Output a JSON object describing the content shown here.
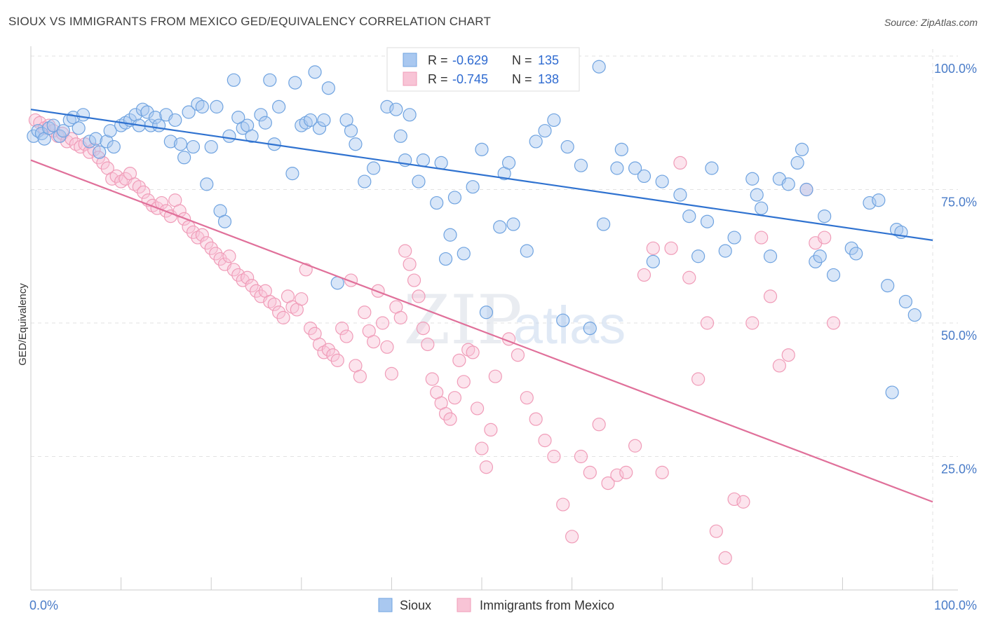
{
  "title": "SIOUX VS IMMIGRANTS FROM MEXICO GED/EQUIVALENCY CORRELATION CHART",
  "source": "Source: ZipAtlas.com",
  "watermark": {
    "zip": "ZIP",
    "atlas": "atlas"
  },
  "colors": {
    "sioux": "#6fa3e0",
    "sioux_fill": "#a9c8f0",
    "sioux_line": "#2f72d0",
    "mexico": "#f09cb8",
    "mexico_fill": "#f8c4d6",
    "mexico_line": "#e0709a",
    "axis_text": "#4a7cc8",
    "grid": "#e2e2e2"
  },
  "legend": {
    "rows": [
      {
        "r_label": "R =",
        "r_value": "-0.629",
        "n_label": "N =",
        "n_value": "135"
      },
      {
        "r_label": "R =",
        "r_value": "-0.745",
        "n_label": "N =",
        "n_value": "138"
      }
    ]
  },
  "chart_data": {
    "type": "scatter",
    "title": "SIOUX VS IMMIGRANTS FROM MEXICO GED/EQUIVALENCY CORRELATION CHART",
    "xlabel": "",
    "ylabel": "GED/Equivalency",
    "xlim": [
      0,
      100
    ],
    "ylim": [
      0,
      100
    ],
    "x_tick_labels": [
      "0.0%",
      "100.0%"
    ],
    "y_ticks": [
      25,
      50,
      75,
      100
    ],
    "y_tick_labels": [
      "25.0%",
      "50.0%",
      "75.0%",
      "100.0%"
    ],
    "grid": true,
    "legend_position": "top-center",
    "series": [
      {
        "name": "Sioux",
        "color": "#6fa3e0",
        "trend": {
          "x": [
            0,
            100
          ],
          "y": [
            90,
            65.5
          ]
        },
        "points": [
          [
            0.3,
            85
          ],
          [
            0.8,
            86
          ],
          [
            1.2,
            85.5
          ],
          [
            1.5,
            84.5
          ],
          [
            2.0,
            86.5
          ],
          [
            2.5,
            87
          ],
          [
            3.2,
            85
          ],
          [
            3.6,
            86
          ],
          [
            4.3,
            88
          ],
          [
            4.7,
            88.5
          ],
          [
            5.3,
            86.5
          ],
          [
            5.8,
            89
          ],
          [
            6.5,
            84
          ],
          [
            7.2,
            84.5
          ],
          [
            7.6,
            82
          ],
          [
            8.4,
            84
          ],
          [
            8.8,
            86
          ],
          [
            9.2,
            83
          ],
          [
            10,
            87
          ],
          [
            10.5,
            87.5
          ],
          [
            11,
            88
          ],
          [
            11.6,
            89
          ],
          [
            12,
            87
          ],
          [
            12.4,
            90
          ],
          [
            12.9,
            89.5
          ],
          [
            13.3,
            87
          ],
          [
            13.8,
            88.5
          ],
          [
            14.2,
            87
          ],
          [
            15,
            89
          ],
          [
            15.5,
            84
          ],
          [
            16,
            88
          ],
          [
            16.6,
            83.5
          ],
          [
            17,
            81
          ],
          [
            17.5,
            89.5
          ],
          [
            18,
            83
          ],
          [
            18.5,
            91
          ],
          [
            19,
            90.5
          ],
          [
            19.5,
            76
          ],
          [
            20,
            83
          ],
          [
            20.6,
            90.5
          ],
          [
            21,
            71
          ],
          [
            21.5,
            69
          ],
          [
            22,
            85
          ],
          [
            22.5,
            95.5
          ],
          [
            23,
            88.5
          ],
          [
            23.5,
            86.5
          ],
          [
            24,
            87
          ],
          [
            24.5,
            85
          ],
          [
            25.5,
            89
          ],
          [
            26,
            87.5
          ],
          [
            26.5,
            95.5
          ],
          [
            27,
            83.5
          ],
          [
            27.5,
            90.5
          ],
          [
            29,
            78
          ],
          [
            29.3,
            95
          ],
          [
            30,
            87
          ],
          [
            30.5,
            87.5
          ],
          [
            31,
            88
          ],
          [
            31.5,
            97
          ],
          [
            32,
            86.5
          ],
          [
            32.5,
            88
          ],
          [
            33,
            94
          ],
          [
            34,
            57.5
          ],
          [
            35,
            88
          ],
          [
            35.5,
            86
          ],
          [
            36,
            83.5
          ],
          [
            37,
            76.5
          ],
          [
            38,
            79
          ],
          [
            39.5,
            90.5
          ],
          [
            40.5,
            90
          ],
          [
            41,
            85
          ],
          [
            41.5,
            80.5
          ],
          [
            42,
            89
          ],
          [
            43,
            76.5
          ],
          [
            43.5,
            80.5
          ],
          [
            45,
            72.5
          ],
          [
            45.5,
            80
          ],
          [
            46,
            62
          ],
          [
            46.5,
            66.5
          ],
          [
            47,
            73.5
          ],
          [
            48,
            63
          ],
          [
            49,
            75.5
          ],
          [
            50,
            82.5
          ],
          [
            50.5,
            52
          ],
          [
            52,
            68
          ],
          [
            52.5,
            78
          ],
          [
            53,
            80
          ],
          [
            53.5,
            68.5
          ],
          [
            55,
            63.5
          ],
          [
            56,
            84
          ],
          [
            57,
            86
          ],
          [
            58,
            88
          ],
          [
            59,
            50.5
          ],
          [
            59.5,
            83
          ],
          [
            61,
            79.5
          ],
          [
            62,
            49
          ],
          [
            63,
            98
          ],
          [
            63.5,
            68.5
          ],
          [
            65,
            79
          ],
          [
            65.5,
            82.5
          ],
          [
            67,
            79
          ],
          [
            68,
            77.5
          ],
          [
            69,
            61.5
          ],
          [
            70,
            76.5
          ],
          [
            72,
            74
          ],
          [
            73,
            70
          ],
          [
            74,
            62.5
          ],
          [
            75,
            69
          ],
          [
            75.5,
            79
          ],
          [
            77,
            63.5
          ],
          [
            78,
            66
          ],
          [
            80,
            77
          ],
          [
            80.5,
            74
          ],
          [
            81,
            71.5
          ],
          [
            82,
            62.5
          ],
          [
            83,
            77
          ],
          [
            84,
            76
          ],
          [
            85,
            80
          ],
          [
            85.5,
            82.5
          ],
          [
            86,
            75
          ],
          [
            87,
            61.5
          ],
          [
            87.5,
            62.5
          ],
          [
            88,
            70
          ],
          [
            89,
            59
          ],
          [
            91,
            64
          ],
          [
            91.5,
            63
          ],
          [
            93,
            72.5
          ],
          [
            94,
            73
          ],
          [
            95,
            57
          ],
          [
            95.5,
            37
          ],
          [
            96,
            67.5
          ],
          [
            96.5,
            67
          ],
          [
            97,
            54
          ],
          [
            98,
            51.5
          ]
        ]
      },
      {
        "name": "Immigrants from Mexico",
        "color": "#f09cb8",
        "trend": {
          "x": [
            0,
            100
          ],
          "y": [
            80.5,
            16.5
          ]
        },
        "points": [
          [
            0.5,
            88
          ],
          [
            1,
            87.5
          ],
          [
            1.5,
            86.5
          ],
          [
            2,
            87
          ],
          [
            2.5,
            86
          ],
          [
            3,
            85
          ],
          [
            3.5,
            85.5
          ],
          [
            4,
            84
          ],
          [
            4.5,
            84.5
          ],
          [
            5,
            83.5
          ],
          [
            5.5,
            83
          ],
          [
            6,
            83.5
          ],
          [
            6.5,
            82
          ],
          [
            7,
            82.5
          ],
          [
            7.5,
            81
          ],
          [
            8,
            80
          ],
          [
            8.5,
            79
          ],
          [
            9,
            77
          ],
          [
            9.5,
            77.5
          ],
          [
            10,
            76.5
          ],
          [
            10.5,
            77
          ],
          [
            11,
            78
          ],
          [
            11.5,
            76
          ],
          [
            12,
            75.5
          ],
          [
            12.5,
            74.5
          ],
          [
            13,
            73
          ],
          [
            13.5,
            72
          ],
          [
            14,
            71.5
          ],
          [
            14.5,
            72.5
          ],
          [
            15,
            71
          ],
          [
            15.5,
            70
          ],
          [
            16,
            73
          ],
          [
            16.5,
            71
          ],
          [
            17,
            69.5
          ],
          [
            17.5,
            68
          ],
          [
            18,
            67
          ],
          [
            18.5,
            66
          ],
          [
            19,
            66.5
          ],
          [
            19.5,
            65
          ],
          [
            20,
            64
          ],
          [
            20.5,
            63
          ],
          [
            21,
            62
          ],
          [
            21.5,
            61
          ],
          [
            22,
            62.5
          ],
          [
            22.5,
            60
          ],
          [
            23,
            59
          ],
          [
            23.5,
            58
          ],
          [
            24,
            58.5
          ],
          [
            24.5,
            57
          ],
          [
            25,
            56
          ],
          [
            25.5,
            55
          ],
          [
            26,
            56
          ],
          [
            26.5,
            54
          ],
          [
            27,
            53.5
          ],
          [
            27.5,
            52
          ],
          [
            28,
            51
          ],
          [
            28.5,
            55
          ],
          [
            29,
            53
          ],
          [
            29.5,
            52.5
          ],
          [
            30,
            54.5
          ],
          [
            30.5,
            60
          ],
          [
            31,
            49
          ],
          [
            31.5,
            48
          ],
          [
            32,
            46
          ],
          [
            32.5,
            44.5
          ],
          [
            33,
            45
          ],
          [
            33.5,
            44
          ],
          [
            34,
            43
          ],
          [
            34.5,
            49
          ],
          [
            35,
            47.5
          ],
          [
            35.5,
            58
          ],
          [
            36,
            42
          ],
          [
            36.5,
            40
          ],
          [
            37,
            52
          ],
          [
            37.5,
            48.5
          ],
          [
            38,
            46.5
          ],
          [
            38.5,
            56
          ],
          [
            39,
            50
          ],
          [
            39.5,
            45.5
          ],
          [
            40,
            40.5
          ],
          [
            40.5,
            53
          ],
          [
            41,
            51
          ],
          [
            41.5,
            63.5
          ],
          [
            42,
            61
          ],
          [
            42.5,
            58
          ],
          [
            43,
            55
          ],
          [
            43.5,
            49
          ],
          [
            44,
            46
          ],
          [
            44.5,
            39.5
          ],
          [
            45,
            37
          ],
          [
            45.5,
            35
          ],
          [
            46,
            33
          ],
          [
            46.5,
            32
          ],
          [
            47,
            36
          ],
          [
            47.5,
            43
          ],
          [
            48,
            39
          ],
          [
            48.5,
            45
          ],
          [
            49,
            44.5
          ],
          [
            49.5,
            34
          ],
          [
            50,
            26.5
          ],
          [
            50.5,
            23
          ],
          [
            51,
            30
          ],
          [
            51.5,
            40
          ],
          [
            52,
            100
          ],
          [
            53,
            47
          ],
          [
            54,
            44
          ],
          [
            55,
            36
          ],
          [
            56,
            32
          ],
          [
            57,
            28
          ],
          [
            58,
            25
          ],
          [
            59,
            16
          ],
          [
            60,
            10
          ],
          [
            61,
            25
          ],
          [
            62,
            22
          ],
          [
            63,
            31
          ],
          [
            64,
            20
          ],
          [
            65,
            21.5
          ],
          [
            66,
            22
          ],
          [
            67,
            27
          ],
          [
            68,
            59
          ],
          [
            69,
            64
          ],
          [
            70,
            22
          ],
          [
            71,
            64
          ],
          [
            72,
            80
          ],
          [
            73,
            58.5
          ],
          [
            74,
            39.5
          ],
          [
            75,
            50
          ],
          [
            76,
            11
          ],
          [
            77,
            6
          ],
          [
            78,
            17
          ],
          [
            79,
            16.5
          ],
          [
            80,
            50
          ],
          [
            81,
            66
          ],
          [
            82,
            55
          ],
          [
            83,
            42
          ],
          [
            84,
            44
          ],
          [
            86,
            75
          ],
          [
            87,
            65
          ],
          [
            88,
            66
          ],
          [
            89,
            50
          ]
        ]
      }
    ]
  },
  "bottom_legend": [
    {
      "label": "Sioux"
    },
    {
      "label": "Immigrants from Mexico"
    }
  ]
}
